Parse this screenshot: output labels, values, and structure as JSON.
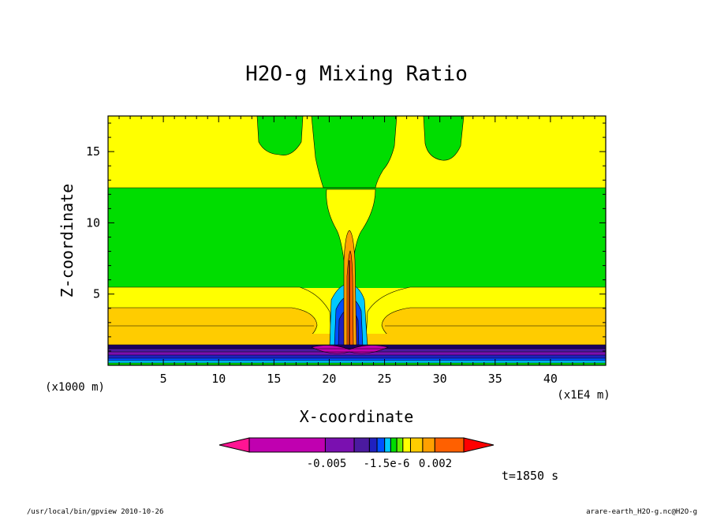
{
  "chart_data": {
    "type": "contour",
    "title": "H2O-g Mixing Ratio",
    "xlabel": "X-coordinate",
    "ylabel": "Z-coordinate",
    "x_unit_label": "(x1E4 m)",
    "y_unit_label": "(x1000 m)",
    "xlim": [
      0,
      45
    ],
    "ylim": [
      0,
      17.5
    ],
    "x_ticks": [
      5,
      10,
      15,
      20,
      25,
      30,
      35,
      40
    ],
    "y_ticks": [
      5,
      10,
      15
    ],
    "colorbar": {
      "colors": [
        "#ff1493",
        "#c000b0",
        "#7a10b0",
        "#4b1aa0",
        "#2020c0",
        "#0050ff",
        "#00c8ff",
        "#00dd00",
        "#66ee00",
        "#ffff00",
        "#ffcc00",
        "#ffa000",
        "#ff6000",
        "#ff0000"
      ],
      "labels": [
        "-0.005",
        "-1.5e-6",
        "0.002"
      ]
    },
    "regions": [
      {
        "name": "upper-background",
        "color": "#ffff00"
      },
      {
        "name": "mid-band",
        "color": "#00dd00"
      },
      {
        "name": "lower-band",
        "color": "#ffff00"
      },
      {
        "name": "surface-band",
        "color": "#ffcc00"
      },
      {
        "name": "central-plume",
        "color": "#ffa000"
      }
    ]
  },
  "annotations": {
    "time": "t=1850 s",
    "program": "/usr/local/bin/gpview  2010-10-26",
    "source": "arare-earth_H2O-g.nc@H2O-g"
  }
}
